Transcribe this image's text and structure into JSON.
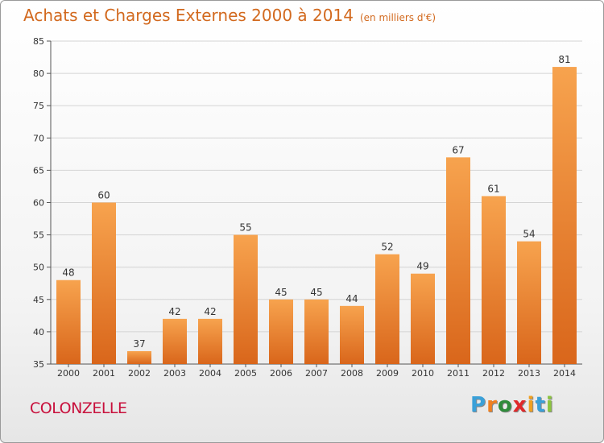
{
  "chart_data": {
    "type": "bar",
    "title": "Achats et Charges Externes 2000 à 2014",
    "unit_label": "(en milliers d'€)",
    "categories": [
      "2000",
      "2001",
      "2002",
      "2003",
      "2004",
      "2005",
      "2006",
      "2007",
      "2008",
      "2009",
      "2010",
      "2011",
      "2012",
      "2013",
      "2014"
    ],
    "values": [
      48,
      60,
      37,
      42,
      42,
      55,
      45,
      45,
      44,
      52,
      49,
      67,
      61,
      54,
      81
    ],
    "ylim": [
      35,
      85
    ],
    "yticks": [
      35,
      40,
      45,
      50,
      55,
      60,
      65,
      70,
      75,
      80,
      85
    ],
    "grid": true,
    "bar_color_top": "#f7a34e",
    "bar_color_bottom": "#d9661b"
  },
  "footer": {
    "place": "COLONZELLE",
    "logo_letters": [
      "P",
      "r",
      "o",
      "x",
      "i",
      "t",
      "i"
    ],
    "logo_colors": [
      "#3aa0d8",
      "#f08020",
      "#2e8b3a",
      "#e0282a",
      "#f0a020",
      "#3aa0d8",
      "#8bc43f"
    ]
  }
}
